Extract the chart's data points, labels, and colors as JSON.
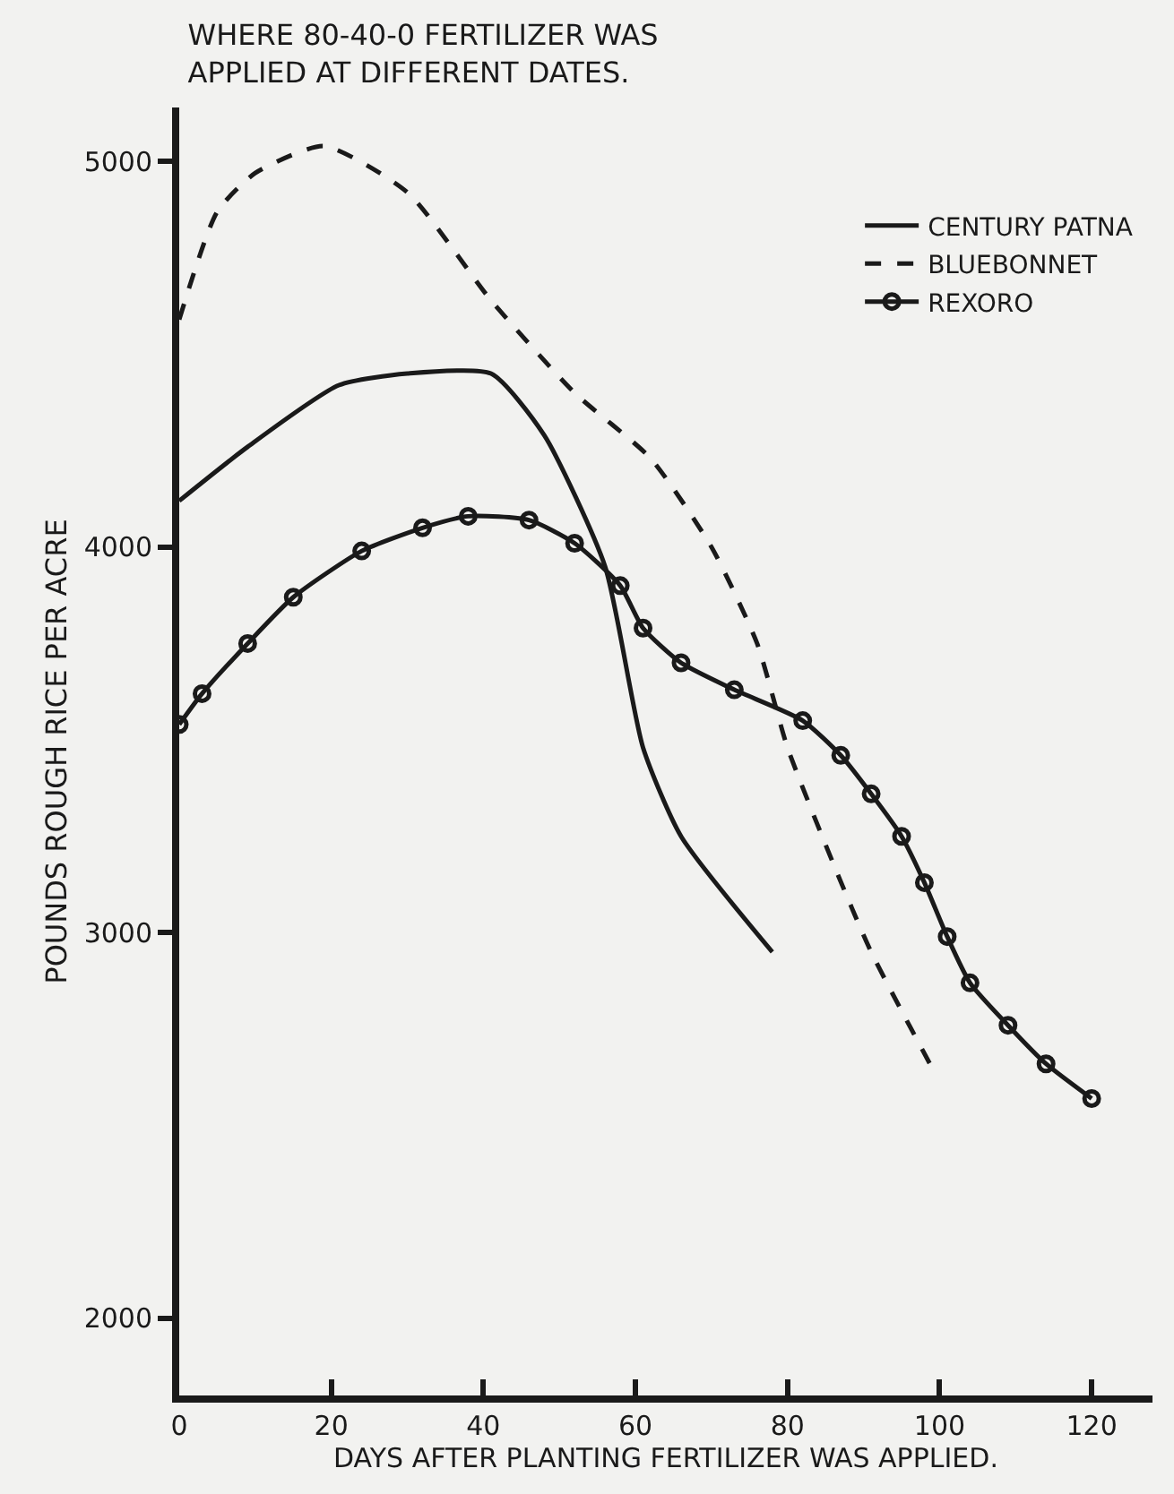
{
  "chart_data": {
    "type": "line",
    "title": "WHERE 80-40-0 FERTILIZER WAS\nAPPLIED AT DIFFERENT DATES.",
    "xlabel": "DAYS AFTER PLANTING FERTILIZER WAS APPLIED.",
    "ylabel": "POUNDS ROUGH RICE PER ACRE",
    "xlim": [
      0,
      128
    ],
    "xticks": [
      0,
      20,
      40,
      60,
      80,
      100,
      120
    ],
    "ylim": [
      1800,
      5140
    ],
    "yticks": [
      2000,
      3000,
      4000,
      5000
    ],
    "grid": false,
    "legend": "top right",
    "series": [
      {
        "name": "CENTURY PATNA",
        "color": "#1a1a1a",
        "line_style": "solid",
        "marker": "none",
        "x": [
          0,
          9,
          21,
          30,
          41,
          48,
          56,
          61,
          66,
          78
        ],
        "values": [
          4120,
          4260,
          4420,
          4450,
          4450,
          4290,
          3950,
          3480,
          3250,
          2950
        ]
      },
      {
        "name": "BLUEBONNET",
        "color": "#1a1a1a",
        "line_style": "dashed",
        "marker": "none",
        "x": [
          0,
          5,
          10,
          19,
          30,
          41,
          52,
          62,
          70,
          76,
          80,
          86,
          91,
          99
        ],
        "values": [
          4590,
          4870,
          4970,
          5040,
          4920,
          4640,
          4400,
          4230,
          4000,
          3750,
          3480,
          3180,
          2950,
          2650
        ]
      },
      {
        "name": "REXORO",
        "color": "#1a1a1a",
        "line_style": "solid",
        "marker": "circle",
        "x": [
          0,
          3,
          9,
          15,
          24,
          32,
          38,
          46,
          52,
          58,
          61,
          66,
          73,
          82,
          87,
          91,
          95,
          98,
          101,
          104,
          109,
          114,
          120
        ],
        "values": [
          3540,
          3620,
          3750,
          3870,
          3990,
          4050,
          4080,
          4070,
          4010,
          3900,
          3790,
          3700,
          3630,
          3550,
          3460,
          3360,
          3250,
          3130,
          2990,
          2870,
          2760,
          2660,
          2570
        ]
      }
    ]
  }
}
